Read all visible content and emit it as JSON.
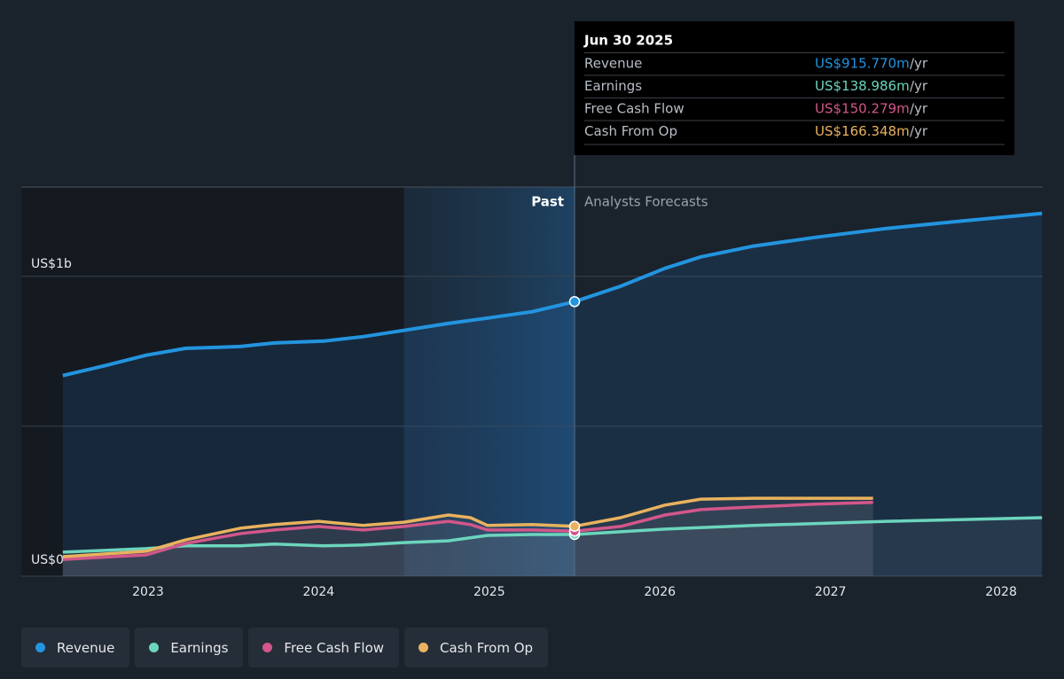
{
  "chart_data": {
    "type": "line",
    "xlim": [
      2022.257,
      2028.244
    ],
    "xticks": [
      2023,
      2024,
      2025,
      2026,
      2027,
      2028
    ],
    "ylim": [
      0,
      1298
    ],
    "yticks": [
      {
        "value": 0,
        "label": "US$0"
      },
      {
        "value": 1000,
        "label": "US$1b"
      }
    ],
    "ygrid": [
      0,
      500,
      1000
    ],
    "grid": true,
    "highlight_xlim": [
      2024.5,
      2025.5
    ],
    "forecast_start": 2025.5,
    "annotations": {
      "past": "Past",
      "forecast": "Analysts Forecasts"
    },
    "series": [
      {
        "name": "Revenue",
        "color": "#2394df",
        "x": [
          2022.5,
          2022.76,
          2022.99,
          2023.22,
          2023.54,
          2023.74,
          2024.03,
          2024.26,
          2024.5,
          2024.76,
          2024.99,
          2025.25,
          2025.5,
          2025.77,
          2026.03,
          2026.24,
          2026.55,
          2026.91,
          2027.33,
          2027.74,
          2028.24
        ],
        "values": [
          669,
          704,
          737,
          760,
          766,
          778,
          784,
          799,
          820,
          843,
          861,
          882,
          915.77,
          967,
          1027,
          1065,
          1101,
          1130,
          1160,
          1183,
          1210
        ]
      },
      {
        "name": "Earnings",
        "color": "#6cd5bd",
        "x": [
          2022.5,
          2022.99,
          2023.22,
          2023.54,
          2023.74,
          2024.03,
          2024.26,
          2024.5,
          2024.76,
          2024.99,
          2025.25,
          2025.5,
          2026.03,
          2026.55,
          2027.33,
          2028.24
        ],
        "values": [
          80,
          92,
          101,
          101,
          107,
          101,
          104,
          112,
          118,
          136,
          139,
          138.986,
          157,
          169,
          183,
          195
        ]
      },
      {
        "name": "Free Cash Flow",
        "color": "#d2578a",
        "x": [
          2022.5,
          2022.99,
          2023.22,
          2023.54,
          2023.74,
          2024.0,
          2024.26,
          2024.5,
          2024.76,
          2024.89,
          2024.99,
          2025.25,
          2025.5,
          2025.77,
          2026.03,
          2026.24,
          2026.55,
          2026.91,
          2027.25
        ],
        "values": [
          56,
          71,
          109,
          142,
          154,
          166,
          154,
          166,
          183,
          172,
          154,
          154,
          150.279,
          166,
          204,
          222,
          231,
          240,
          246
        ]
      },
      {
        "name": "Cash From Op",
        "color": "#e9b25e",
        "x": [
          2022.5,
          2022.99,
          2023.22,
          2023.54,
          2023.74,
          2024.0,
          2024.26,
          2024.5,
          2024.76,
          2024.89,
          2024.99,
          2025.25,
          2025.5,
          2025.77,
          2026.03,
          2026.24,
          2026.55,
          2026.91,
          2027.25
        ],
        "values": [
          65,
          83,
          121,
          160,
          172,
          183,
          169,
          180,
          204,
          195,
          169,
          172,
          166.348,
          195,
          237,
          257,
          260,
          260,
          260
        ]
      }
    ],
    "tooltip": {
      "title": "Jun 30 2025",
      "rows": [
        {
          "label": "Revenue",
          "value": "US$915.770m",
          "suffix": "/yr"
        },
        {
          "label": "Earnings",
          "value": "US$138.986m",
          "suffix": "/yr"
        },
        {
          "label": "Free Cash Flow",
          "value": "US$150.279m",
          "suffix": "/yr"
        },
        {
          "label": "Cash From Op",
          "value": "US$166.348m",
          "suffix": "/yr"
        }
      ]
    }
  }
}
